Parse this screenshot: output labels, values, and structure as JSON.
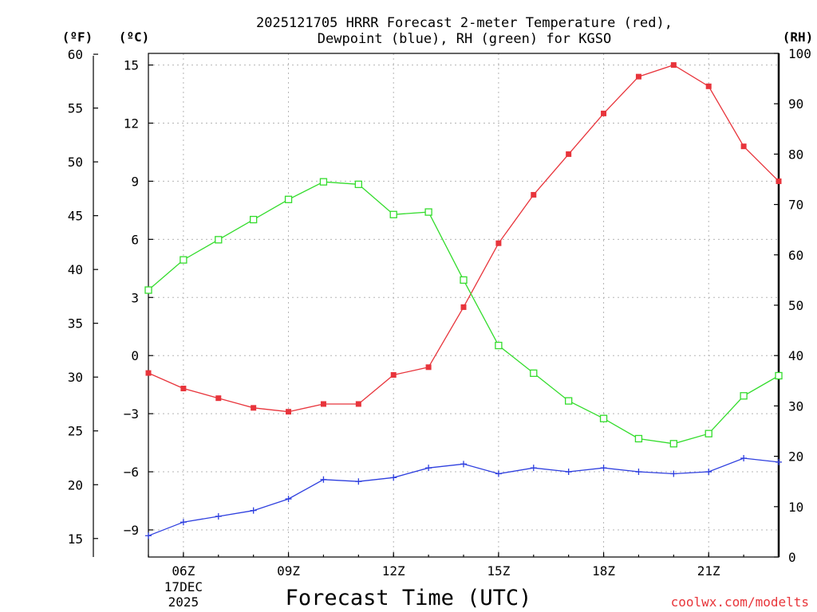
{
  "chart_data": {
    "type": "line",
    "title_line1": "2025121705 HRRR Forecast 2-meter Temperature (red),",
    "title_line2": "Dewpoint (blue), RH (green) for KGSO",
    "xlabel": "Forecast Time (UTC)",
    "credit": "coolwx.com/modelts",
    "units": {
      "fahrenheit": "(ºF)",
      "celsius": "(ºC)",
      "rh": "(RH)"
    },
    "x_hours": [
      5,
      6,
      7,
      8,
      9,
      10,
      11,
      12,
      13,
      14,
      15,
      16,
      17,
      18,
      19,
      20,
      21,
      22,
      23
    ],
    "x_range": [
      5,
      23
    ],
    "x_ticks": [
      {
        "hour": 6,
        "label": "06Z",
        "date_line1": "17DEC",
        "date_line2": "2025"
      },
      {
        "hour": 9,
        "label": "09Z"
      },
      {
        "hour": 12,
        "label": "12Z"
      },
      {
        "hour": 15,
        "label": "15Z"
      },
      {
        "hour": 18,
        "label": "18Z"
      },
      {
        "hour": 21,
        "label": "21Z"
      }
    ],
    "celsius_axis": {
      "range": [
        -10.4,
        15.6
      ],
      "ticks": [
        15,
        12,
        9,
        6,
        3,
        0,
        -3,
        -6,
        -9
      ],
      "labels": [
        "15",
        "12",
        "9",
        "6",
        "3",
        "0",
        "−3",
        "−6",
        "−9"
      ]
    },
    "fahrenheit_axis": {
      "ticks": [
        60,
        55,
        50,
        45,
        40,
        35,
        30,
        25,
        20,
        15
      ],
      "labels": [
        "60",
        "55",
        "50",
        "45",
        "40",
        "35",
        "30",
        "25",
        "20",
        "15"
      ]
    },
    "rh_axis": {
      "range": [
        0,
        100
      ],
      "ticks": [
        100,
        90,
        80,
        70,
        60,
        50,
        40,
        30,
        20,
        10,
        0
      ],
      "labels": [
        "100",
        "90",
        "80",
        "70",
        "60",
        "50",
        "40",
        "30",
        "20",
        "10",
        "0"
      ]
    },
    "series": [
      {
        "name": "Temperature",
        "axis": "celsius",
        "color": "#e8343b",
        "marker": "filled-square",
        "values": [
          -0.9,
          -1.7,
          -2.2,
          -2.7,
          -2.9,
          -2.5,
          -2.5,
          -1.0,
          -0.6,
          2.5,
          5.8,
          8.3,
          10.4,
          12.5,
          14.4,
          15.0,
          13.9,
          10.8,
          9.0
        ]
      },
      {
        "name": "Dewpoint",
        "axis": "celsius",
        "color": "#2e3fdf",
        "marker": "plus",
        "values": [
          -9.3,
          -8.6,
          -8.3,
          -8.0,
          -7.4,
          -6.4,
          -6.5,
          -6.3,
          -5.8,
          -5.6,
          -6.1,
          -5.8,
          -6.0,
          -5.8,
          -6.0,
          -6.1,
          -6.0,
          -5.3,
          -5.5
        ]
      },
      {
        "name": "RH",
        "axis": "rh",
        "color": "#33dc2c",
        "marker": "open-square",
        "values": [
          53,
          59,
          63,
          67,
          71,
          74.5,
          74,
          68,
          68.5,
          55,
          42,
          36.5,
          31,
          27.5,
          23.5,
          22.5,
          24.5,
          32,
          36
        ]
      }
    ]
  }
}
